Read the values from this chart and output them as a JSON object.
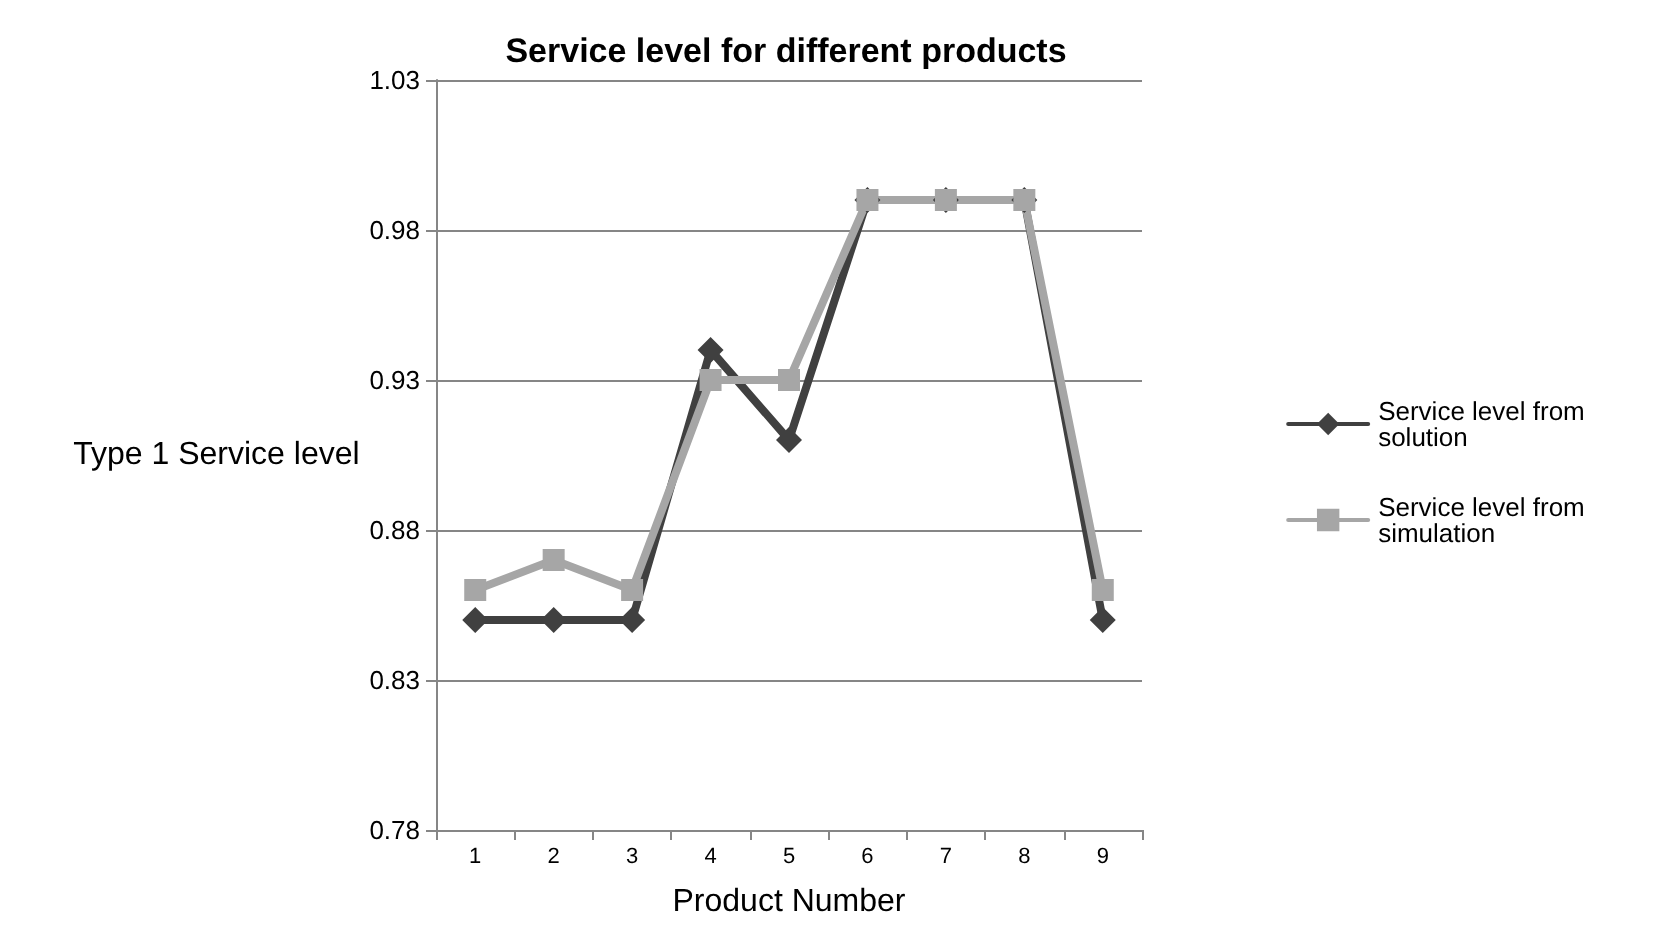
{
  "chart_data": {
    "type": "line",
    "title": "Service level for different products",
    "xlabel": "Product Number",
    "ylabel": "Type 1 Service level",
    "categories": [
      "1",
      "2",
      "3",
      "4",
      "5",
      "6",
      "7",
      "8",
      "9"
    ],
    "series": [
      {
        "name": "Service level from solution",
        "color": "#404040",
        "marker": "diamond",
        "values": [
          0.85,
          0.85,
          0.85,
          0.94,
          0.91,
          0.99,
          0.99,
          0.99,
          0.85
        ]
      },
      {
        "name": "Service level from simulation",
        "color": "#a6a6a6",
        "marker": "square",
        "values": [
          0.86,
          0.87,
          0.86,
          0.93,
          0.93,
          0.99,
          0.99,
          0.99,
          0.86
        ]
      }
    ],
    "ylim": [
      0.78,
      1.03
    ],
    "yticks": [
      0.78,
      0.83,
      0.88,
      0.93,
      0.98,
      1.03
    ],
    "grid": "y",
    "legend": "right"
  }
}
